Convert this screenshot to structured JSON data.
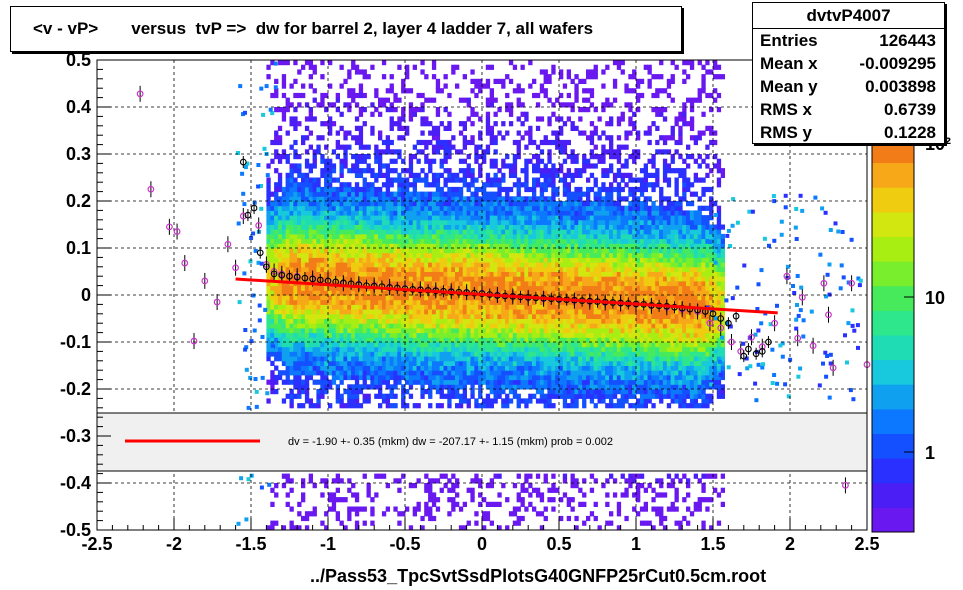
{
  "title": "<v - vP>       versus  tvP =>  dw for barrel 2, layer 4 ladder 7, all wafers",
  "stats": {
    "name": "dvtvP4007",
    "rows": [
      {
        "label": "Entries",
        "value": "126443"
      },
      {
        "label": "Mean x",
        "value": "-0.009295"
      },
      {
        "label": "Mean y",
        "value": "0.003898"
      },
      {
        "label": "RMS x",
        "value": "0.6739"
      },
      {
        "label": "RMS y",
        "value": "0.1228"
      }
    ]
  },
  "footer": "../Pass53_TpcSvtSsdPlotsG40GNFP25rCut0.5cm.root",
  "legend_text": "dv =   -1.90 +-  0.35 (mkm) dw = -207.17 +-  1.15 (mkm) prob = 0.002",
  "colors": {
    "fit_line": "#ff0000",
    "profile_black": "#000000",
    "profile_magenta": "#cc33cc"
  },
  "chart_data": {
    "type": "heatmap",
    "title": "<v - vP>       versus  tvP =>  dw for barrel 2, layer 4 ladder 7, all wafers",
    "xlim": [
      -2.5,
      2.5
    ],
    "ylim": [
      -0.5,
      0.5
    ],
    "x_ticks": [
      "-2.5",
      "-2",
      "-1.5",
      "-1",
      "-0.5",
      "0",
      "0.5",
      "1",
      "1.5",
      "2",
      "2.5"
    ],
    "y_ticks": [
      "-0.5",
      "-0.4",
      "-0.3",
      "-0.2",
      "-0.1",
      "0",
      "0.1",
      "0.2",
      "0.3",
      "0.4",
      "0.5"
    ],
    "z_scale": "log",
    "z_ticks": [
      "1",
      "10",
      "10²"
    ],
    "grid": true,
    "fit_line": {
      "x": [
        -1.6,
        1.92
      ],
      "y": [
        0.034,
        -0.038
      ]
    },
    "profile_black": [
      {
        "x": -1.55,
        "y": 0.283
      },
      {
        "x": -1.52,
        "y": 0.17
      },
      {
        "x": -1.48,
        "y": 0.185
      },
      {
        "x": -1.44,
        "y": 0.09
      },
      {
        "x": -1.4,
        "y": 0.06
      },
      {
        "x": -1.35,
        "y": 0.045
      },
      {
        "x": -1.3,
        "y": 0.042
      },
      {
        "x": -1.25,
        "y": 0.04
      },
      {
        "x": -1.2,
        "y": 0.038
      },
      {
        "x": -1.15,
        "y": 0.036
      },
      {
        "x": -1.1,
        "y": 0.034
      },
      {
        "x": -1.05,
        "y": 0.032
      },
      {
        "x": -1.0,
        "y": 0.03
      },
      {
        "x": -0.95,
        "y": 0.028
      },
      {
        "x": -0.9,
        "y": 0.026
      },
      {
        "x": -0.85,
        "y": 0.024
      },
      {
        "x": -0.8,
        "y": 0.022
      },
      {
        "x": -0.75,
        "y": 0.02
      },
      {
        "x": -0.7,
        "y": 0.019
      },
      {
        "x": -0.65,
        "y": 0.018
      },
      {
        "x": -0.6,
        "y": 0.016
      },
      {
        "x": -0.55,
        "y": 0.015
      },
      {
        "x": -0.5,
        "y": 0.013
      },
      {
        "x": -0.45,
        "y": 0.012
      },
      {
        "x": -0.4,
        "y": 0.011
      },
      {
        "x": -0.35,
        "y": 0.01
      },
      {
        "x": -0.3,
        "y": 0.009
      },
      {
        "x": -0.25,
        "y": 0.008
      },
      {
        "x": -0.2,
        "y": 0.007
      },
      {
        "x": -0.15,
        "y": 0.006
      },
      {
        "x": -0.1,
        "y": 0.005
      },
      {
        "x": -0.05,
        "y": 0.004
      },
      {
        "x": 0.0,
        "y": 0.003
      },
      {
        "x": 0.05,
        "y": 0.001
      },
      {
        "x": 0.1,
        "y": -0.001
      },
      {
        "x": 0.15,
        "y": -0.002
      },
      {
        "x": 0.2,
        "y": -0.003
      },
      {
        "x": 0.25,
        "y": -0.004
      },
      {
        "x": 0.3,
        "y": -0.005
      },
      {
        "x": 0.35,
        "y": -0.006
      },
      {
        "x": 0.4,
        "y": -0.007
      },
      {
        "x": 0.45,
        "y": -0.008
      },
      {
        "x": 0.5,
        "y": -0.009
      },
      {
        "x": 0.55,
        "y": -0.01
      },
      {
        "x": 0.6,
        "y": -0.011
      },
      {
        "x": 0.65,
        "y": -0.012
      },
      {
        "x": 0.7,
        "y": -0.013
      },
      {
        "x": 0.75,
        "y": -0.014
      },
      {
        "x": 0.8,
        "y": -0.015
      },
      {
        "x": 0.85,
        "y": -0.016
      },
      {
        "x": 0.9,
        "y": -0.017
      },
      {
        "x": 0.95,
        "y": -0.018
      },
      {
        "x": 1.0,
        "y": -0.019
      },
      {
        "x": 1.05,
        "y": -0.02
      },
      {
        "x": 1.1,
        "y": -0.022
      },
      {
        "x": 1.15,
        "y": -0.023
      },
      {
        "x": 1.2,
        "y": -0.024
      },
      {
        "x": 1.25,
        "y": -0.026
      },
      {
        "x": 1.3,
        "y": -0.028
      },
      {
        "x": 1.35,
        "y": -0.03
      },
      {
        "x": 1.4,
        "y": -0.032
      },
      {
        "x": 1.45,
        "y": -0.035
      },
      {
        "x": 1.5,
        "y": -0.04
      },
      {
        "x": 1.55,
        "y": -0.05
      },
      {
        "x": 1.6,
        "y": -0.06
      },
      {
        "x": 1.65,
        "y": -0.045
      },
      {
        "x": 1.7,
        "y": -0.13
      },
      {
        "x": 1.73,
        "y": -0.115
      },
      {
        "x": 1.78,
        "y": -0.125
      },
      {
        "x": 1.82,
        "y": -0.12
      },
      {
        "x": 1.86,
        "y": -0.1
      }
    ],
    "profile_magenta": [
      {
        "x": -2.22,
        "y": 0.428
      },
      {
        "x": -2.15,
        "y": 0.225
      },
      {
        "x": -2.03,
        "y": 0.145
      },
      {
        "x": -1.98,
        "y": 0.135
      },
      {
        "x": -1.93,
        "y": 0.068
      },
      {
        "x": -1.87,
        "y": -0.098
      },
      {
        "x": -1.8,
        "y": 0.03
      },
      {
        "x": -1.72,
        "y": -0.015
      },
      {
        "x": -1.65,
        "y": 0.108
      },
      {
        "x": -1.6,
        "y": 0.058
      },
      {
        "x": -1.55,
        "y": 0.168
      },
      {
        "x": -1.45,
        "y": 0.148
      },
      {
        "x": -1.4,
        "y": 0.065
      },
      {
        "x": -1.35,
        "y": 0.05
      },
      {
        "x": -1.3,
        "y": 0.045
      },
      {
        "x": -1.2,
        "y": 0.04
      },
      {
        "x": -1.1,
        "y": 0.035
      },
      {
        "x": -1.0,
        "y": 0.03
      },
      {
        "x": -0.9,
        "y": 0.025
      },
      {
        "x": -0.8,
        "y": 0.023
      },
      {
        "x": -0.7,
        "y": 0.02
      },
      {
        "x": -0.6,
        "y": 0.017
      },
      {
        "x": -0.5,
        "y": 0.014
      },
      {
        "x": -0.4,
        "y": 0.012
      },
      {
        "x": -0.3,
        "y": 0.01
      },
      {
        "x": -0.2,
        "y": 0.008
      },
      {
        "x": -0.1,
        "y": 0.006
      },
      {
        "x": 0.0,
        "y": 0.004
      },
      {
        "x": 0.1,
        "y": 0.0
      },
      {
        "x": 0.2,
        "y": -0.003
      },
      {
        "x": 0.3,
        "y": -0.006
      },
      {
        "x": 0.4,
        "y": -0.008
      },
      {
        "x": 0.5,
        "y": -0.01
      },
      {
        "x": 0.6,
        "y": -0.012
      },
      {
        "x": 0.7,
        "y": -0.014
      },
      {
        "x": 0.8,
        "y": -0.016
      },
      {
        "x": 0.9,
        "y": -0.018
      },
      {
        "x": 1.0,
        "y": -0.02
      },
      {
        "x": 1.1,
        "y": -0.023
      },
      {
        "x": 1.2,
        "y": -0.026
      },
      {
        "x": 1.3,
        "y": -0.03
      },
      {
        "x": 1.4,
        "y": -0.035
      },
      {
        "x": 1.48,
        "y": -0.06
      },
      {
        "x": 1.55,
        "y": -0.07
      },
      {
        "x": 1.62,
        "y": -0.1
      },
      {
        "x": 1.68,
        "y": -0.12
      },
      {
        "x": 1.75,
        "y": -0.09
      },
      {
        "x": 1.82,
        "y": -0.11
      },
      {
        "x": 1.9,
        "y": -0.06
      },
      {
        "x": 1.98,
        "y": 0.04
      },
      {
        "x": 2.05,
        "y": -0.092
      },
      {
        "x": 2.08,
        "y": -0.005
      },
      {
        "x": 2.15,
        "y": -0.108
      },
      {
        "x": 2.22,
        "y": 0.025
      },
      {
        "x": 2.25,
        "y": -0.042
      },
      {
        "x": 2.28,
        "y": -0.155
      },
      {
        "x": 2.36,
        "y": -0.405
      },
      {
        "x": 2.4,
        "y": 0.025
      },
      {
        "x": 2.5,
        "y": -0.148
      }
    ]
  }
}
